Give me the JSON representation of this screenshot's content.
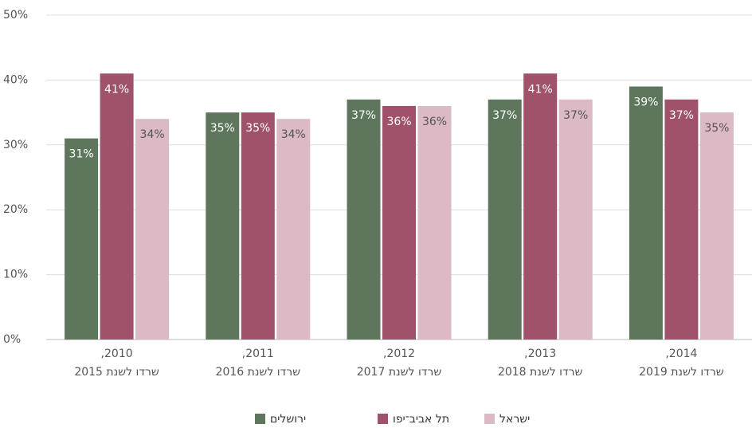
{
  "chart_data": {
    "type": "bar",
    "categories": [
      [
        "2010,",
        "שרדו לשנת 2015"
      ],
      [
        "2011,",
        "שרדו לשנת 2016"
      ],
      [
        "2012,",
        "שרדו לשנת 2017"
      ],
      [
        "2013,",
        "שרדו לשנת 2018"
      ],
      [
        "2014,",
        "שרדו לשנת 2019"
      ]
    ],
    "series": [
      {
        "name": "ירושלים",
        "color": "#5e775c",
        "values": [
          31,
          35,
          37,
          37,
          39
        ],
        "value_labels": [
          "31%",
          "35%",
          "37%",
          "37%",
          "39%"
        ]
      },
      {
        "name": "תל אביב־יפו",
        "color": "#a0526b",
        "values": [
          41,
          35,
          36,
          41,
          37
        ],
        "value_labels": [
          "41%",
          "35%",
          "36%",
          "41%",
          "37%"
        ]
      },
      {
        "name": "ישראל",
        "color": "#dbb9c5",
        "values": [
          34,
          34,
          36,
          37,
          35
        ],
        "value_labels": [
          "34%",
          "34%",
          "36%",
          "37%",
          "35%"
        ]
      }
    ],
    "ylim": [
      0,
      50
    ],
    "yticks": [
      {
        "value": 0,
        "label": "0%"
      },
      {
        "value": 10,
        "label": "10%"
      },
      {
        "value": 20,
        "label": "20%"
      },
      {
        "value": 30,
        "label": "30%"
      },
      {
        "value": 40,
        "label": "40%"
      },
      {
        "value": 50,
        "label": "50%"
      }
    ],
    "grid": true,
    "legend": "bottom"
  }
}
